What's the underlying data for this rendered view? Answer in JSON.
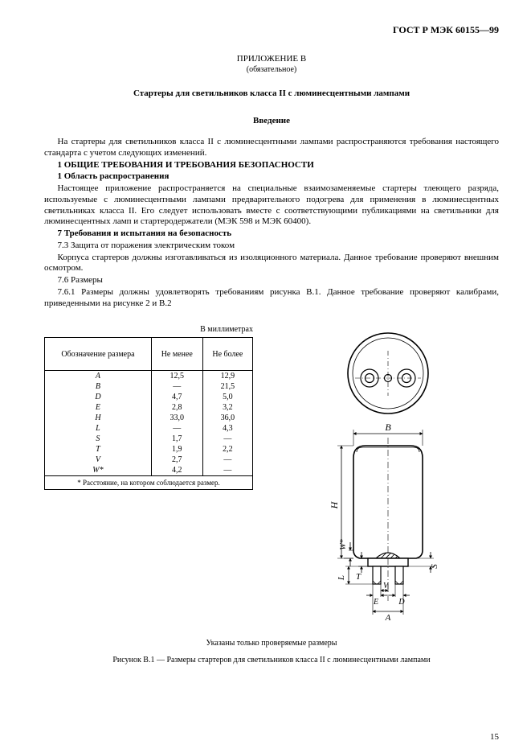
{
  "header": {
    "doc_id": "ГОСТ Р МЭК 60155—99"
  },
  "annex": {
    "title": "ПРИЛОЖЕНИЕ В",
    "subtitle": "(обязательное)",
    "main_title": "Стартеры для светильников класса II с люминесцентными лампами",
    "intro_title": "Введение"
  },
  "body": {
    "p1": "На стартеры для светильников класса II с люминесцентными лампами распространяются требования настоящего стандарта с учетом следующих изменений.",
    "h1": "1 ОБЩИЕ ТРЕБОВАНИЯ И ТРЕБОВАНИЯ БЕЗОПАСНОСТИ",
    "h1a": "1 Область распространения",
    "p2": "Настоящее приложение распространяется на специальные взаимозаменяемые стартеры тлеющего разряда, используемые с люминесцентными лампами предварительного подогрева для применения в люминесцентных светильниках класса II. Его следует использовать вместе с соответствующими публикациями на светильники для люминесцентных ламп и стартеродержатели (МЭК 598 и МЭК 60400).",
    "h7": "7 Требования и испытания на безопасность",
    "h73": "7.3 Защита от поражения электрическим током",
    "p3": "Корпуса стартеров должны изготавливаться из изоляционного материала. Данное требование проверяют внешним осмотром.",
    "h76": "7.6 Размеры",
    "p4": "7.6.1 Размеры должны удовлетворять требованиям рисунка В.1. Данное требование проверяют калибрами, приведенными на рисунке 2 и В.2"
  },
  "table": {
    "units": "В миллиметрах",
    "columns": [
      "Обозначение размера",
      "Не менее",
      "Не более"
    ],
    "rows": [
      {
        "sym": "A",
        "min": "12,5",
        "max": "12,9"
      },
      {
        "sym": "B",
        "min": "—",
        "max": "21,5"
      },
      {
        "sym": "D",
        "min": "4,7",
        "max": "5,0"
      },
      {
        "sym": "E",
        "min": "2,8",
        "max": "3,2"
      },
      {
        "sym": "H",
        "min": "33,0",
        "max": "36,0"
      },
      {
        "sym": "L",
        "min": "—",
        "max": "4,3"
      },
      {
        "sym": "S",
        "min": "1,7",
        "max": "—"
      },
      {
        "sym": "T",
        "min": "1,9",
        "max": "2,2"
      },
      {
        "sym": "V",
        "min": "2,7",
        "max": "—"
      },
      {
        "sym": "W*",
        "min": "4,2",
        "max": "—"
      }
    ],
    "footnote": "* Расстояние, на котором соблюдается размер."
  },
  "diagram": {
    "labels": {
      "B": "B",
      "H": "H",
      "W": "W*",
      "T": "T",
      "L": "L",
      "E": "E",
      "A": "A",
      "V": "V",
      "D": "D",
      "S": "S"
    },
    "colors": {
      "stroke": "#000000",
      "fill": "#ffffff",
      "hatch": "#000000"
    },
    "stroke_width_main": 1.6,
    "stroke_width_thin": 0.8
  },
  "figure": {
    "note": "Указаны только проверяемые размеры",
    "caption": "Рисунок В.1 — Размеры стартеров для светильников класса II с люминесцентными лампами"
  },
  "page_number": "15"
}
